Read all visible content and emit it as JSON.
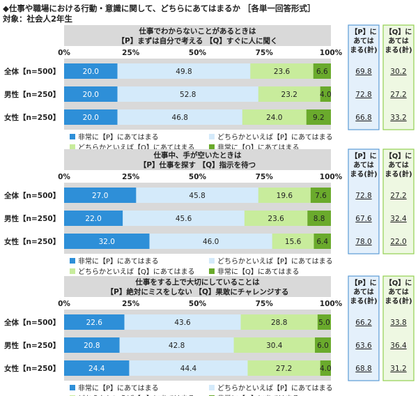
{
  "header": {
    "title": "◆仕事や職場における行動・意識に関して、どちらにあてはまるか ［各単一回答形式］",
    "subtitle": "対象：社会人2年生"
  },
  "colors": {
    "p_strong": "#2e8fd8",
    "p_somewhat": "#d4eafa",
    "q_somewhat": "#c8ec9c",
    "q_strong": "#6aaa2c",
    "panel_bg": "#d9d9d9",
    "p_box_bg": "#e4f0fb",
    "p_box_border": "#5b9bd5",
    "q_box_bg": "#eef8e2",
    "q_box_border": "#92d050"
  },
  "chart_data": [
    {
      "type": "bar",
      "orientation": "horizontal-stacked-100",
      "title_line1": "仕事でわからないことがあるときは",
      "title_line2": "【P】まずは自分で考える 【Q】すぐに人に聞く",
      "ticks": [
        "0%",
        "25%",
        "50%",
        "75%",
        "100%"
      ],
      "xlim": [
        0,
        100
      ],
      "categories": [
        "全体【n=500】",
        "男性【n=250】",
        "女性【n=250】"
      ],
      "series": [
        {
          "name": "非常に【P】にあてはまる",
          "values": [
            20.0,
            20.0,
            20.0
          ]
        },
        {
          "name": "どちらかといえば【P】にあてはまる",
          "values": [
            49.8,
            52.8,
            46.8
          ]
        },
        {
          "name": "どちらかといえば【Q】にあてはまる",
          "values": [
            23.6,
            23.2,
            24.0
          ]
        },
        {
          "name": "非常に【Q】にあてはまる",
          "values": [
            6.6,
            4.0,
            9.2
          ]
        }
      ],
      "labels": [
        [
          "20.0",
          "49.8",
          "23.6",
          "6.6"
        ],
        [
          "20.0",
          "52.8",
          "23.2",
          "4.0"
        ],
        [
          "20.0",
          "46.8",
          "24.0",
          "9.2"
        ]
      ],
      "p_total_header": [
        "【P】に",
        "あては",
        "まる(計)"
      ],
      "q_total_header": [
        "【Q】に",
        "あては",
        "まる(計)"
      ],
      "p_totals": [
        "69.8",
        "72.8",
        "66.8"
      ],
      "q_totals": [
        "30.2",
        "27.2",
        "33.2"
      ]
    },
    {
      "type": "bar",
      "orientation": "horizontal-stacked-100",
      "title_line1": "仕事中、手が空いたときは",
      "title_line2": "【P】仕事を探す 【Q】指示を待つ",
      "ticks": [
        "0%",
        "25%",
        "50%",
        "75%",
        "100%"
      ],
      "xlim": [
        0,
        100
      ],
      "categories": [
        "全体【n=500】",
        "男性【n=250】",
        "女性【n=250】"
      ],
      "series": [
        {
          "name": "非常に【P】にあてはまる",
          "values": [
            27.0,
            22.0,
            32.0
          ]
        },
        {
          "name": "どちらかといえば【P】にあてはまる",
          "values": [
            45.8,
            45.6,
            46.0
          ]
        },
        {
          "name": "どちらかといえば【Q】にあてはまる",
          "values": [
            19.6,
            23.6,
            15.6
          ]
        },
        {
          "name": "非常に【Q】にあてはまる",
          "values": [
            7.6,
            8.8,
            6.4
          ]
        }
      ],
      "labels": [
        [
          "27.0",
          "45.8",
          "19.6",
          "7.6"
        ],
        [
          "22.0",
          "45.6",
          "23.6",
          "8.8"
        ],
        [
          "32.0",
          "46.0",
          "15.6",
          "6.4"
        ]
      ],
      "p_total_header": [
        "【P】に",
        "あては",
        "まる(計)"
      ],
      "q_total_header": [
        "【Q】に",
        "あては",
        "まる(計)"
      ],
      "p_totals": [
        "72.8",
        "67.6",
        "78.0"
      ],
      "q_totals": [
        "27.2",
        "32.4",
        "22.0"
      ]
    },
    {
      "type": "bar",
      "orientation": "horizontal-stacked-100",
      "title_line1": "仕事をする上で大切にしていることは",
      "title_line2": "【P】絶対にミスをしない 【Q】果敢にチャレンジする",
      "ticks": [
        "0%",
        "25%",
        "50%",
        "75%",
        "100%"
      ],
      "xlim": [
        0,
        100
      ],
      "categories": [
        "全体【n=500】",
        "男性【n=250】",
        "女性【n=250】"
      ],
      "series": [
        {
          "name": "非常に【P】にあてはまる",
          "values": [
            22.6,
            20.8,
            24.4
          ]
        },
        {
          "name": "どちらかといえば【P】にあてはまる",
          "values": [
            43.6,
            42.8,
            44.4
          ]
        },
        {
          "name": "どちらかといえば【Q】にあてはまる",
          "values": [
            28.8,
            30.4,
            27.2
          ]
        },
        {
          "name": "非常に【Q】にあてはまる",
          "values": [
            5.0,
            6.0,
            4.0
          ]
        }
      ],
      "labels": [
        [
          "22.6",
          "43.6",
          "28.8",
          "5.0"
        ],
        [
          "20.8",
          "42.8",
          "30.4",
          "6.0"
        ],
        [
          "24.4",
          "44.4",
          "27.2",
          "4.0"
        ]
      ],
      "p_total_header": [
        "【P】に",
        "あては",
        "まる(計)"
      ],
      "q_total_header": [
        "【Q】に",
        "あては",
        "まる(計)"
      ],
      "p_totals": [
        "66.2",
        "63.6",
        "68.8"
      ],
      "q_totals": [
        "33.8",
        "36.4",
        "31.2"
      ]
    }
  ]
}
